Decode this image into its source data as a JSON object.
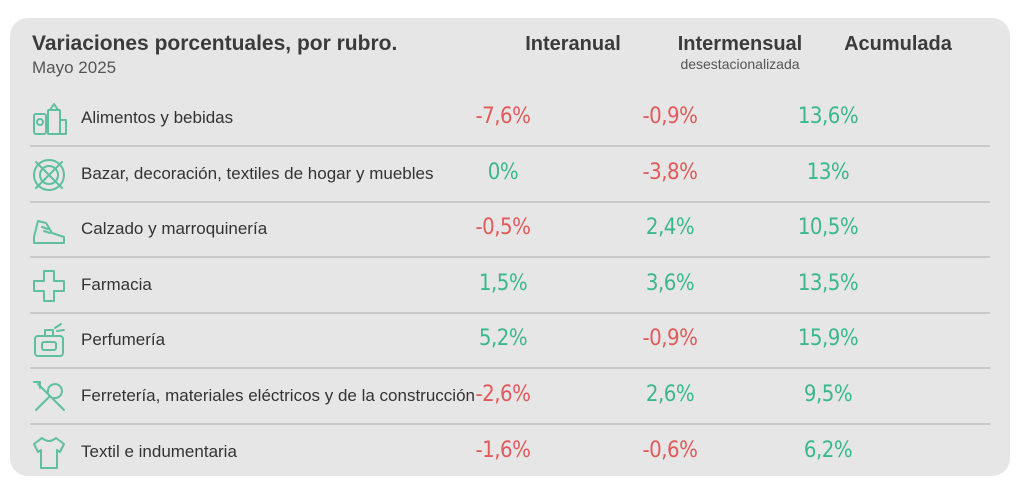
{
  "header": {
    "title": "Variaciones porcentuales, por rubro.",
    "subtitle": "Mayo 2025",
    "col1": "Interanual",
    "col2": "Intermensual",
    "col2_sub": "desestacionalizada",
    "col3": "Acumulada"
  },
  "colors": {
    "negative": "#e05a5a",
    "positive": "#3bb78f",
    "icon": "#5fbfa0"
  },
  "rows": [
    {
      "icon": "grocery-icon",
      "label": "Alimentos y bebidas",
      "interanual": "-7,6%",
      "intermensual": "-0,9%",
      "acumulada": "13,6%"
    },
    {
      "icon": "dishes-icon",
      "label": "Bazar, decoración, textiles de hogar y muebles",
      "interanual": "0%",
      "intermensual": "-3,8%",
      "acumulada": "13%"
    },
    {
      "icon": "shoe-icon",
      "label": "Calzado y marroquinería",
      "interanual": "-0,5%",
      "intermensual": "2,4%",
      "acumulada": "10,5%"
    },
    {
      "icon": "cross-icon",
      "label": "Farmacia",
      "interanual": "1,5%",
      "intermensual": "3,6%",
      "acumulada": "13,5%"
    },
    {
      "icon": "perfume-icon",
      "label": "Perfumería",
      "interanual": "5,2%",
      "intermensual": "-0,9%",
      "acumulada": "15,9%"
    },
    {
      "icon": "tools-icon",
      "label": "Ferretería, materiales eléctricos y de la construcción",
      "interanual": "-2,6%",
      "intermensual": "2,6%",
      "acumulada": "9,5%"
    },
    {
      "icon": "shirt-icon",
      "label": "Textil e indumentaria",
      "interanual": "-1,6%",
      "intermensual": "-0,6%",
      "acumulada": "6,2%"
    }
  ]
}
